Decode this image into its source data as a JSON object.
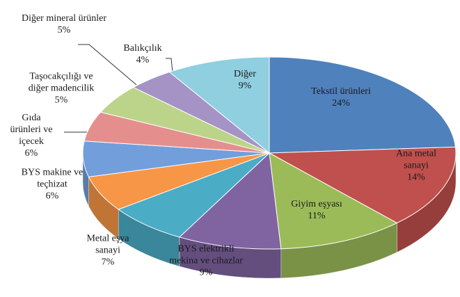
{
  "chart_data": {
    "type": "pie3d",
    "categories": [
      "Tekstil ürünleri",
      "Ana metal sanayi",
      "Giyim eşyası",
      "BYS elektrikli mekina ve cihazlar",
      "Metal eşya sanayi",
      "BYS makine ve teçhizat",
      "Gıda ürünleri ve içecek",
      "Taşocakçılığı ve diğer madencilik",
      "Diğer mineral ürünler",
      "Balıkçılık",
      "Diğer"
    ],
    "values": [
      24,
      14,
      11,
      9,
      7,
      6,
      6,
      5,
      5,
      4,
      9
    ],
    "value_labels": [
      "24%",
      "14%",
      "11%",
      "9%",
      "7%",
      "6%",
      "6%",
      "5%",
      "5%",
      "4%",
      "9%"
    ],
    "colors": [
      "#4f81bd",
      "#c0504d",
      "#9bbb59",
      "#8064a2",
      "#4bacc6",
      "#f79646",
      "#729fdb",
      "#e48f8d",
      "#bcd48a",
      "#a493c4",
      "#8fcfe0"
    ]
  }
}
